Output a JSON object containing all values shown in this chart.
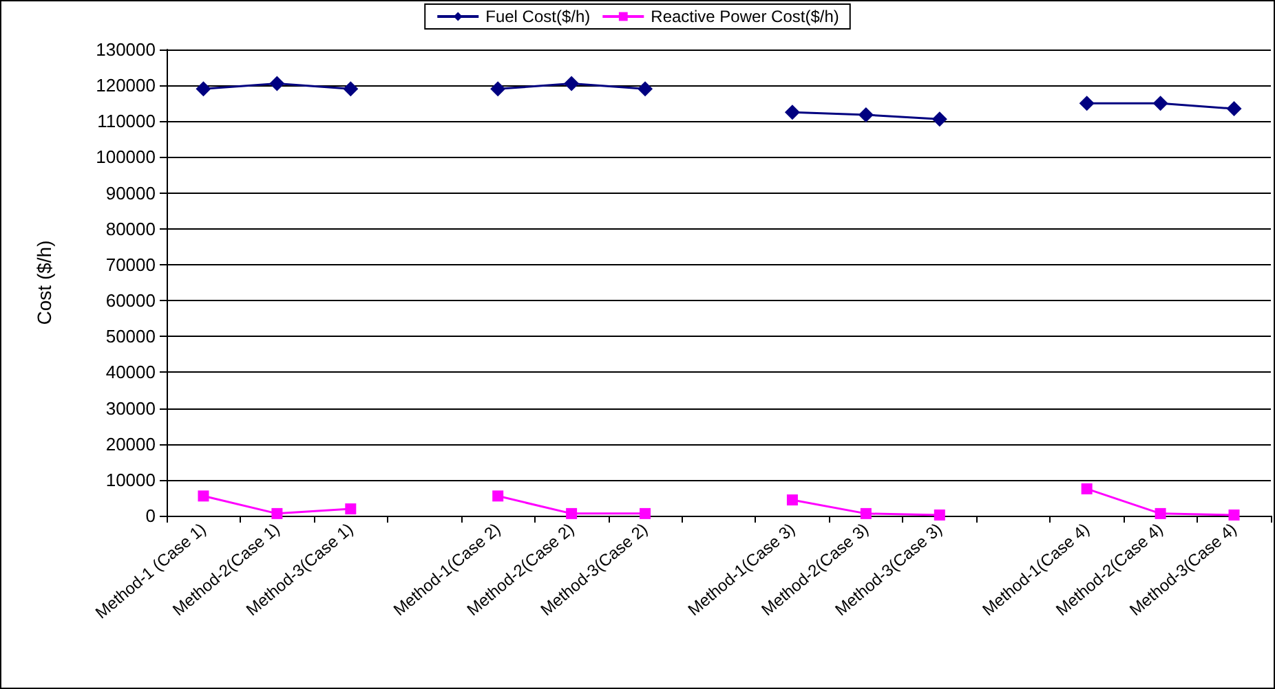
{
  "chart_data": {
    "type": "line",
    "ylabel": "Cost ($/h)",
    "categories": [
      "Method-1 (Case 1)",
      "Method-2(Case 1)",
      "Method-3(Case 1)",
      null,
      "Method-1(Case 2)",
      "Method-2(Case 2)",
      "Method-3(Case 2)",
      null,
      "Method-1(Case 3)",
      "Method-2(Case 3)",
      "Method-3(Case 3)",
      null,
      "Method-1(Case 4)",
      "Method-2(Case 4)",
      "Method-3(Case 4)"
    ],
    "series": [
      {
        "name": "Fuel Cost($/h)",
        "color": "#000080",
        "marker": "diamond",
        "values": [
          119000,
          120500,
          119000,
          null,
          119000,
          120500,
          119000,
          null,
          112500,
          111800,
          110600,
          null,
          115000,
          115000,
          113500
        ]
      },
      {
        "name": "Reactive Power Cost($/h)",
        "color": "#ff00ff",
        "marker": "square",
        "values": [
          5500,
          600,
          1900,
          null,
          5500,
          600,
          600,
          null,
          4400,
          600,
          200,
          null,
          7500,
          600,
          200
        ]
      }
    ],
    "ylim": [
      0,
      130000
    ],
    "yticks": [
      0,
      10000,
      20000,
      30000,
      40000,
      50000,
      60000,
      70000,
      80000,
      90000,
      100000,
      110000,
      120000,
      130000
    ],
    "grid": "y",
    "legend": "top",
    "line_style": "solid"
  }
}
